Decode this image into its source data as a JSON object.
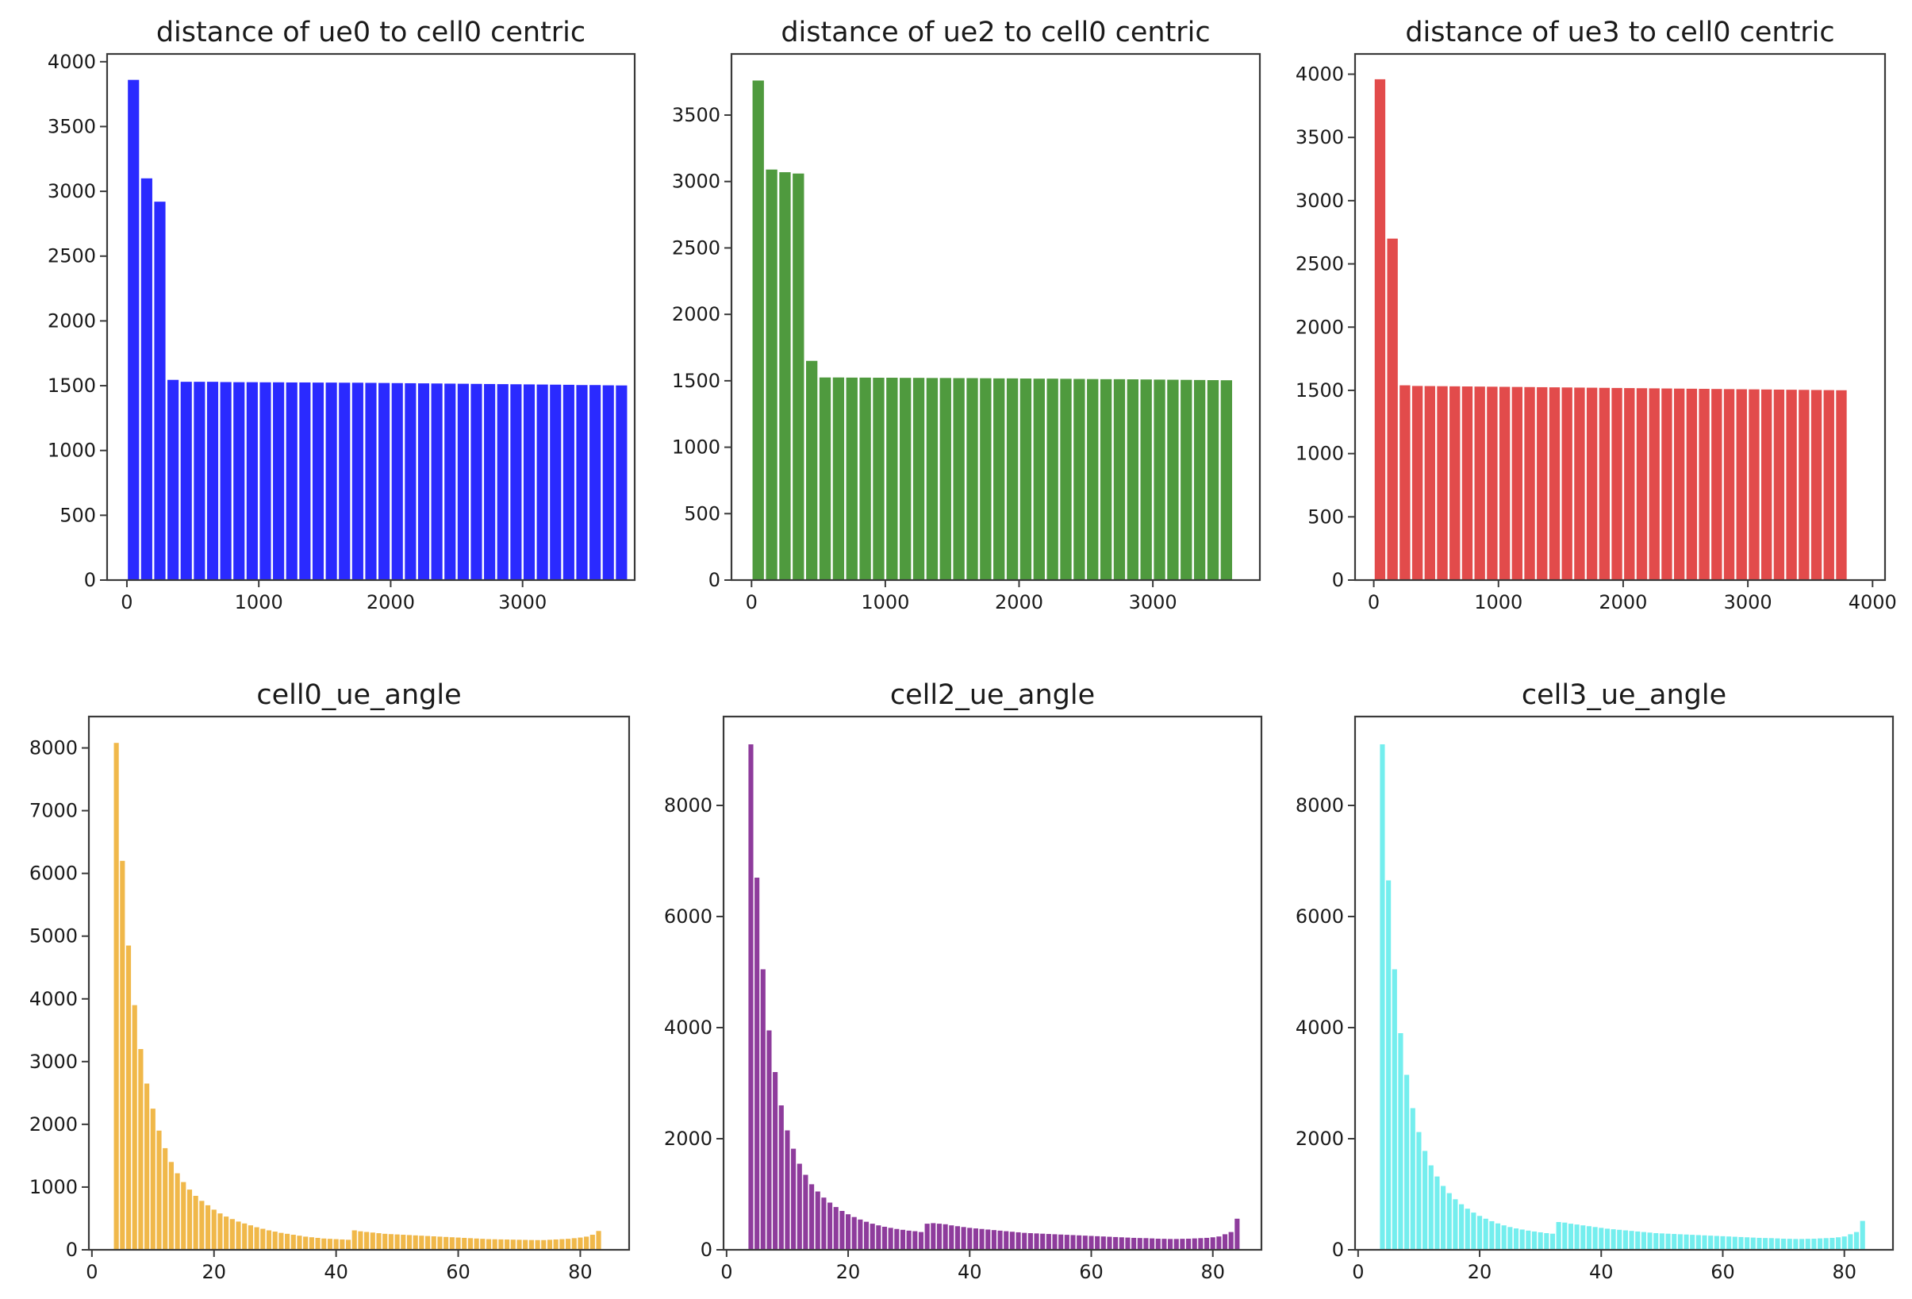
{
  "chart_data": [
    {
      "type": "bar",
      "title": "distance of ue0 to cell0 centric",
      "color": "#2a2aff",
      "xlim": [
        -150,
        3850
      ],
      "ylim": [
        0,
        4060
      ],
      "bar_start": 50,
      "bar_step": 100,
      "bar_width_frac": 0.85,
      "xticks": [
        0,
        1000,
        2000,
        3000
      ],
      "yticks": [
        0,
        500,
        1000,
        1500,
        2000,
        2500,
        3000,
        3500,
        4000
      ],
      "values": [
        3860,
        3100,
        2920,
        1545,
        1530,
        1530,
        1530,
        1528,
        1527,
        1527,
        1526,
        1526,
        1525,
        1525,
        1524,
        1524,
        1523,
        1523,
        1522,
        1521,
        1520,
        1519,
        1518,
        1517,
        1516,
        1515,
        1514,
        1513,
        1512,
        1511,
        1510,
        1509,
        1508,
        1507,
        1505,
        1505,
        1503,
        1502
      ]
    },
    {
      "type": "bar",
      "title": "distance of ue2 to cell0 centric",
      "color": "#4f9a3e",
      "xlim": [
        -150,
        3800
      ],
      "ylim": [
        0,
        3960
      ],
      "bar_start": 50,
      "bar_step": 100,
      "bar_width_frac": 0.85,
      "xticks": [
        0,
        1000,
        2000,
        3000
      ],
      "yticks": [
        0,
        500,
        1000,
        1500,
        2000,
        2500,
        3000,
        3500
      ],
      "values": [
        3760,
        3090,
        3070,
        3060,
        1650,
        1525,
        1525,
        1524,
        1524,
        1523,
        1523,
        1522,
        1522,
        1521,
        1521,
        1520,
        1520,
        1519,
        1518,
        1518,
        1517,
        1516,
        1516,
        1515,
        1514,
        1513,
        1512,
        1512,
        1511,
        1510,
        1509,
        1508,
        1507,
        1506,
        1505,
        1504
      ]
    },
    {
      "type": "bar",
      "title": "distance of ue3 to cell0 centric",
      "color": "#e24b4b",
      "xlim": [
        -150,
        4100
      ],
      "ylim": [
        0,
        4160
      ],
      "bar_start": 50,
      "bar_step": 100,
      "bar_width_frac": 0.85,
      "xticks": [
        0,
        1000,
        2000,
        3000,
        4000
      ],
      "yticks": [
        0,
        500,
        1000,
        1500,
        2000,
        2500,
        3000,
        3500,
        4000
      ],
      "values": [
        3960,
        2700,
        1540,
        1535,
        1534,
        1533,
        1532,
        1531,
        1530,
        1529,
        1528,
        1527,
        1526,
        1525,
        1524,
        1523,
        1522,
        1521,
        1520,
        1519,
        1518,
        1517,
        1516,
        1515,
        1514,
        1513,
        1512,
        1511,
        1510,
        1509,
        1508,
        1507,
        1506,
        1505,
        1504,
        1503,
        1502,
        1501
      ]
    },
    {
      "type": "bar",
      "title": "cell0_ue_angle",
      "color": "#f0b84a",
      "xlim": [
        -0.5,
        88
      ],
      "ylim": [
        0,
        8500
      ],
      "bar_start": 4,
      "bar_step": 1,
      "bar_width_frac": 0.8,
      "xticks": [
        0,
        20,
        40,
        60,
        80
      ],
      "yticks": [
        0,
        1000,
        2000,
        3000,
        4000,
        5000,
        6000,
        7000,
        8000
      ],
      "values": [
        8080,
        6200,
        4850,
        3900,
        3200,
        2650,
        2250,
        1900,
        1620,
        1400,
        1220,
        1080,
        960,
        860,
        780,
        710,
        640,
        580,
        530,
        490,
        450,
        420,
        390,
        360,
        335,
        310,
        290,
        270,
        255,
        240,
        225,
        210,
        200,
        190,
        180,
        175,
        170,
        165,
        160,
        310,
        295,
        285,
        275,
        265,
        255,
        250,
        245,
        240,
        235,
        230,
        225,
        220,
        215,
        210,
        205,
        200,
        195,
        190,
        185,
        180,
        175,
        170,
        168,
        166,
        164,
        162,
        160,
        158,
        156,
        155,
        155,
        160,
        165,
        170,
        175,
        185,
        195,
        210,
        240,
        300
      ]
    },
    {
      "type": "bar",
      "title": "cell2_ue_angle",
      "color": "#8e3c9c",
      "xlim": [
        -0.5,
        88
      ],
      "ylim": [
        0,
        9600
      ],
      "bar_start": 4,
      "bar_step": 1,
      "bar_width_frac": 0.8,
      "xticks": [
        0,
        20,
        40,
        60,
        80
      ],
      "yticks": [
        0,
        2000,
        4000,
        6000,
        8000
      ],
      "values": [
        9100,
        6700,
        5050,
        3950,
        3200,
        2600,
        2150,
        1820,
        1550,
        1350,
        1180,
        1050,
        940,
        850,
        770,
        700,
        640,
        590,
        545,
        505,
        470,
        440,
        415,
        395,
        375,
        360,
        345,
        335,
        320,
        470,
        480,
        470,
        460,
        440,
        425,
        410,
        395,
        385,
        375,
        365,
        355,
        345,
        335,
        325,
        315,
        305,
        300,
        295,
        290,
        285,
        280,
        275,
        270,
        265,
        260,
        255,
        250,
        245,
        240,
        235,
        230,
        225,
        220,
        215,
        212,
        210,
        205,
        200,
        198,
        195,
        195,
        198,
        200,
        205,
        210,
        215,
        225,
        240,
        280,
        320,
        560
      ]
    },
    {
      "type": "bar",
      "title": "cell3_ue_angle",
      "color": "#74eeee",
      "xlim": [
        -0.5,
        88
      ],
      "ylim": [
        0,
        9600
      ],
      "bar_start": 4,
      "bar_step": 1,
      "bar_width_frac": 0.8,
      "xticks": [
        0,
        20,
        40,
        60,
        80
      ],
      "yticks": [
        0,
        2000,
        4000,
        6000,
        8000
      ],
      "values": [
        9100,
        6650,
        5050,
        3900,
        3150,
        2550,
        2120,
        1780,
        1520,
        1320,
        1150,
        1020,
        910,
        820,
        740,
        670,
        610,
        560,
        515,
        475,
        440,
        410,
        385,
        365,
        345,
        330,
        315,
        300,
        290,
        500,
        490,
        470,
        455,
        440,
        425,
        410,
        395,
        380,
        370,
        360,
        350,
        340,
        330,
        320,
        310,
        300,
        295,
        290,
        285,
        280,
        275,
        270,
        265,
        260,
        255,
        250,
        245,
        240,
        235,
        230,
        225,
        220,
        215,
        212,
        210,
        205,
        200,
        198,
        195,
        195,
        198,
        200,
        205,
        210,
        215,
        225,
        240,
        280,
        320,
        520
      ]
    }
  ]
}
